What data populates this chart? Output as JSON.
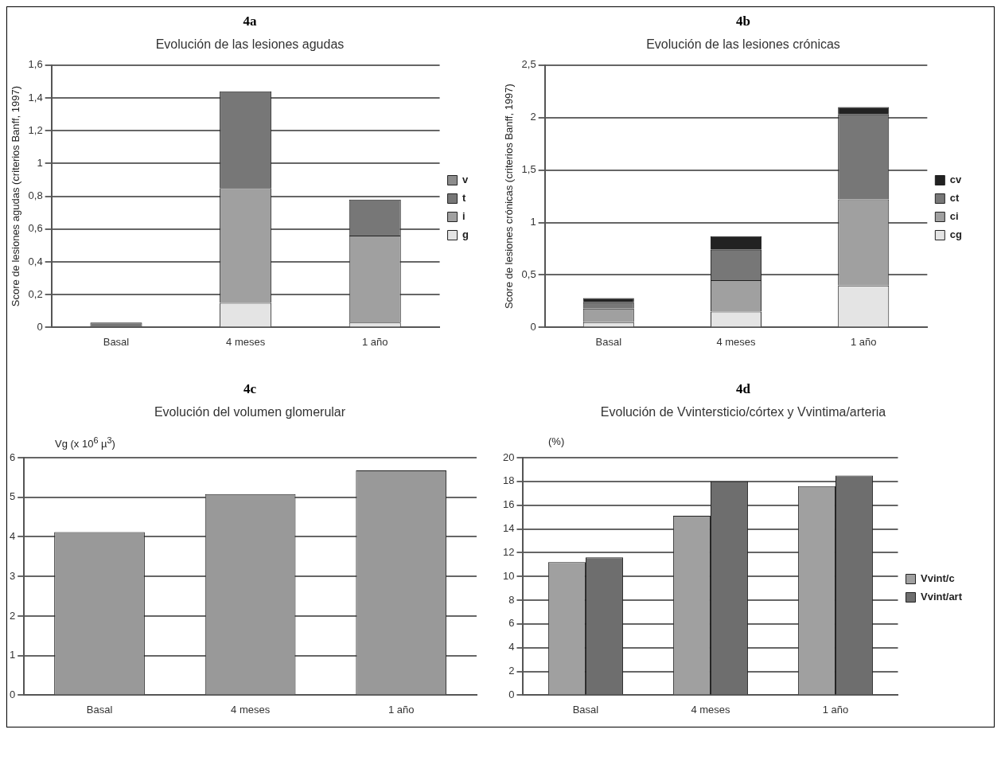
{
  "chart_data": [
    {
      "type": "bar",
      "title": "4a",
      "subtitle": "Evolución de las lesiones agudas",
      "ylabel": "Score de lesiones agudas (criterios Banff, 1997)",
      "categories": [
        "Basal",
        "4 meses",
        "1 año"
      ],
      "stacked": true,
      "ylim": [
        0,
        1.6
      ],
      "yticks": [
        0,
        {
          "value": 0.2,
          "label": "0,2"
        },
        {
          "value": 0.4,
          "label": "0,4"
        },
        {
          "value": 0.6,
          "label": "0,6"
        },
        {
          "value": 0.8,
          "label": "0,8"
        },
        1,
        {
          "value": 1.2,
          "label": "1,2"
        },
        {
          "value": 1.4,
          "label": "1,4"
        },
        {
          "value": 1.6,
          "label": "1,6"
        }
      ],
      "grid": "y",
      "legend": "right",
      "series": [
        {
          "name": "g",
          "color": "#e4e4e4",
          "values": [
            0,
            0.15,
            0.03
          ]
        },
        {
          "name": "i",
          "color": "#a0a0a0",
          "values": [
            0,
            0.7,
            0.53
          ]
        },
        {
          "name": "t",
          "color": "#777777",
          "values": [
            0.03,
            0.59,
            0.22
          ]
        },
        {
          "name": "v",
          "color": "#8c8c8c",
          "values": [
            0,
            0,
            0
          ]
        }
      ]
    },
    {
      "type": "bar",
      "title": "4b",
      "subtitle": "Evolución de las lesiones crónicas",
      "ylabel": "Score de lesiones crónicas (criterios Banff, 1997)",
      "categories": [
        "Basal",
        "4 meses",
        "1 año"
      ],
      "stacked": true,
      "ylim": [
        0,
        2.5
      ],
      "yticks": [
        0,
        {
          "value": 0.5,
          "label": "0,5"
        },
        1,
        {
          "value": 1.5,
          "label": "1,5"
        },
        2,
        {
          "value": 2.5,
          "label": "2,5"
        }
      ],
      "grid": "y",
      "legend": "right",
      "series": [
        {
          "name": "cg",
          "color": "#e4e4e4",
          "values": [
            0.05,
            0.15,
            0.4
          ]
        },
        {
          "name": "ci",
          "color": "#a0a0a0",
          "values": [
            0.13,
            0.3,
            0.82
          ]
        },
        {
          "name": "ct",
          "color": "#777777",
          "values": [
            0.06,
            0.29,
            0.81
          ]
        },
        {
          "name": "cv",
          "color": "#222222",
          "values": [
            0.04,
            0.13,
            0.07
          ]
        }
      ]
    },
    {
      "type": "bar",
      "title": "4c",
      "subtitle": "Evolución del volumen glomerular",
      "ylabel": "Vg (x 10$^{6}$ µ$^{3}$)",
      "categories": [
        "Basal",
        "4 meses",
        "1 año"
      ],
      "ylim": [
        0,
        6
      ],
      "yticks": [
        0,
        1,
        2,
        3,
        4,
        5,
        6
      ],
      "grid": "y",
      "legend": false,
      "color": "#999999",
      "values": [
        4.12,
        5.08,
        5.68
      ]
    },
    {
      "type": "bar",
      "title": "4d",
      "subtitle": "Evolución de Vvintersticio/córtex  y Vvintima/arteria",
      "ylabel": "(%)",
      "categories": [
        "Basal",
        "4 meses",
        "1 año"
      ],
      "ylim": [
        0,
        20
      ],
      "yticks": [
        0,
        2,
        4,
        6,
        8,
        10,
        12,
        14,
        16,
        18,
        20
      ],
      "grid": "y",
      "legend": "right",
      "series": [
        {
          "name": "Vvint/c",
          "color": "#a0a0a0",
          "values": [
            11.2,
            15.1,
            17.6
          ]
        },
        {
          "name": "Vvint/art",
          "color": "#6e6e6e",
          "values": [
            11.6,
            18.0,
            18.5
          ]
        }
      ]
    }
  ]
}
